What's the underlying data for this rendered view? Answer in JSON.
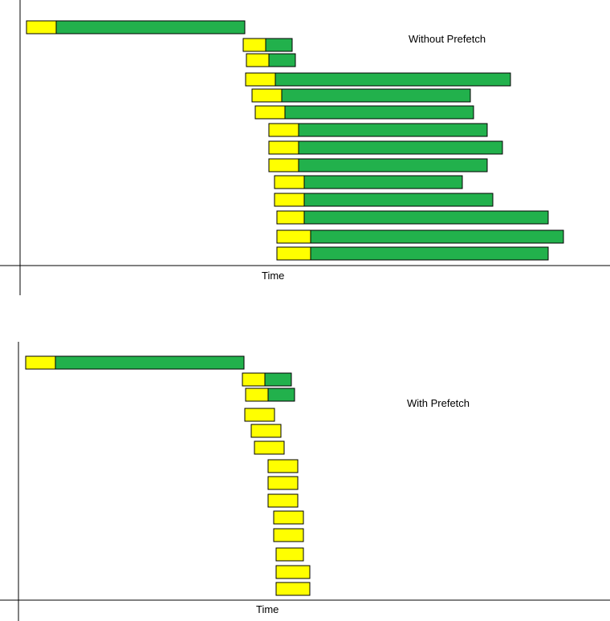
{
  "colors": {
    "wait": "#ffff00",
    "transfer": "#22b14c",
    "axis": "#000000",
    "background": "#ffffff"
  },
  "panels": [
    {
      "id": "top",
      "label": "Without Prefetch",
      "xlabel": "Time",
      "bars": [
        {
          "start": 0,
          "wait": 37,
          "transfer": 235
        },
        {
          "start": 270,
          "wait": 28,
          "transfer": 33
        },
        {
          "start": 274,
          "wait": 28,
          "transfer": 33
        },
        {
          "start": 273,
          "wait": 37,
          "transfer": 293
        },
        {
          "start": 281,
          "wait": 37,
          "transfer": 235
        },
        {
          "start": 285,
          "wait": 37,
          "transfer": 235
        },
        {
          "start": 302,
          "wait": 37,
          "transfer": 235
        },
        {
          "start": 302,
          "wait": 37,
          "transfer": 254
        },
        {
          "start": 302,
          "wait": 37,
          "transfer": 235
        },
        {
          "start": 309,
          "wait": 37,
          "transfer": 197
        },
        {
          "start": 309,
          "wait": 37,
          "transfer": 235
        },
        {
          "start": 312,
          "wait": 34,
          "transfer": 304
        },
        {
          "start": 312,
          "wait": 42,
          "transfer": 315
        },
        {
          "start": 312,
          "wait": 42,
          "transfer": 296
        }
      ]
    },
    {
      "id": "bottom",
      "label": "With Prefetch",
      "xlabel": "Time",
      "bars": [
        {
          "start": 0,
          "wait": 37,
          "transfer": 235
        },
        {
          "start": 270,
          "wait": 28,
          "transfer": 33
        },
        {
          "start": 274,
          "wait": 28,
          "transfer": 33
        },
        {
          "start": 273,
          "wait": 37,
          "transfer": 0
        },
        {
          "start": 281,
          "wait": 37,
          "transfer": 0
        },
        {
          "start": 285,
          "wait": 37,
          "transfer": 0
        },
        {
          "start": 302,
          "wait": 37,
          "transfer": 0
        },
        {
          "start": 302,
          "wait": 37,
          "transfer": 0
        },
        {
          "start": 302,
          "wait": 37,
          "transfer": 0
        },
        {
          "start": 309,
          "wait": 37,
          "transfer": 0
        },
        {
          "start": 309,
          "wait": 37,
          "transfer": 0
        },
        {
          "start": 312,
          "wait": 34,
          "transfer": 0
        },
        {
          "start": 312,
          "wait": 42,
          "transfer": 0
        },
        {
          "start": 312,
          "wait": 42,
          "transfer": 0
        }
      ]
    }
  ]
}
